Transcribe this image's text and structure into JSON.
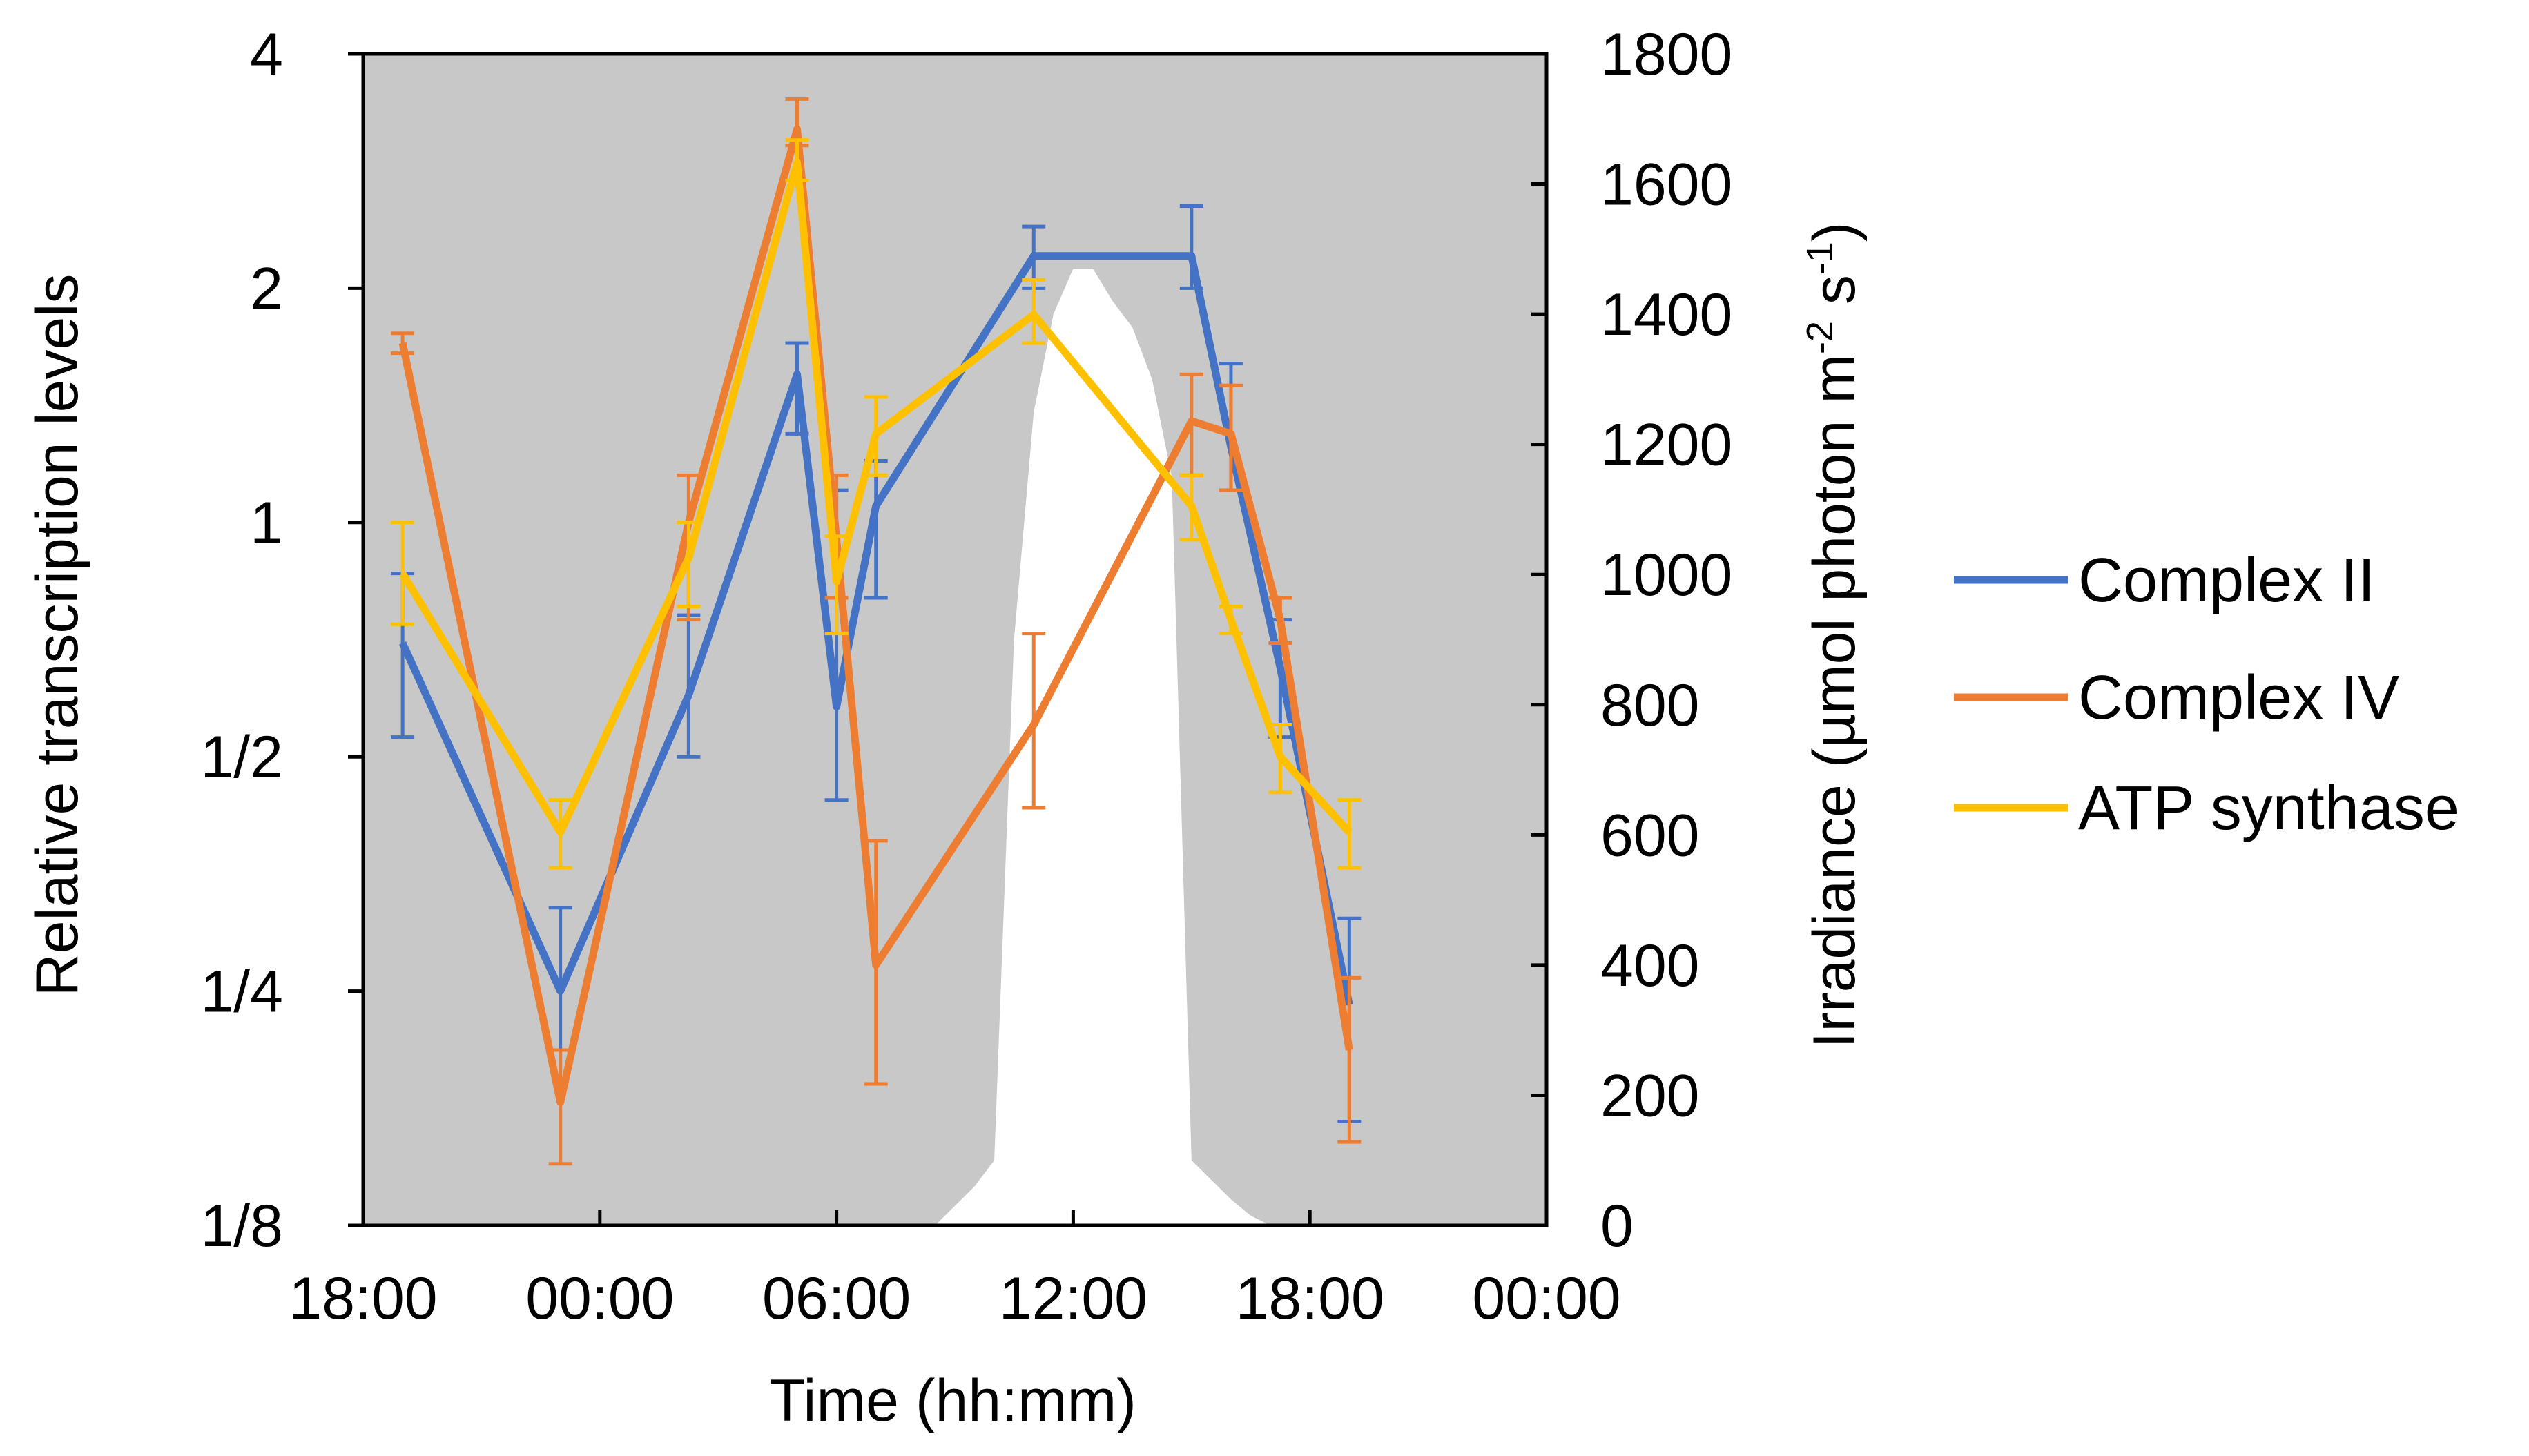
{
  "chart_data": {
    "type": "line",
    "xlabel": "Time (hh:mm)",
    "ylabel": "Relative transcription levels",
    "ylabel2": "Irradiance (µmol photon m⁻² s⁻¹)",
    "ylabel2_parts": [
      "Irradiance (µmol photon m",
      "-2",
      " s",
      "-1",
      ")"
    ],
    "x_range_hours": [
      -6,
      24
    ],
    "x_ticks": [
      {
        "hour": -6,
        "label": "18:00"
      },
      {
        "hour": 0,
        "label": "00:00"
      },
      {
        "hour": 6,
        "label": "06:00"
      },
      {
        "hour": 12,
        "label": "12:00"
      },
      {
        "hour": 18,
        "label": "18:00"
      },
      {
        "hour": 24,
        "label": "00:00"
      }
    ],
    "y_scale": "log2",
    "y_range": [
      0.125,
      4
    ],
    "y_ticks": [
      {
        "value": 4,
        "label": "4"
      },
      {
        "value": 2,
        "label": "2"
      },
      {
        "value": 1,
        "label": "1"
      },
      {
        "value": 0.5,
        "label": "1/2"
      },
      {
        "value": 0.25,
        "label": "1/4"
      },
      {
        "value": 0.125,
        "label": "1/8"
      }
    ],
    "y2_range": [
      0,
      1800
    ],
    "y2_ticks": [
      0,
      200,
      400,
      600,
      800,
      1000,
      1200,
      1400,
      1600,
      1800
    ],
    "y2_tick_labels": [
      "0",
      "200",
      "400",
      "600",
      "800",
      "1000",
      "1200",
      "1400",
      "1600",
      "1800"
    ],
    "grid": false,
    "legend_position": "right",
    "plot_background": "#c8c8c8",
    "irradiance": {
      "hours": [
        8.5,
        9.0,
        9.5,
        10.0,
        10.5,
        11.0,
        11.5,
        12.0,
        12.5,
        13.0,
        13.5,
        14.0,
        14.5,
        15.0,
        15.5,
        16.0,
        16.5,
        17.0
      ],
      "values": [
        0,
        30,
        60,
        100,
        900,
        1250,
        1400,
        1470,
        1470,
        1420,
        1380,
        1300,
        1150,
        100,
        70,
        40,
        15,
        0
      ],
      "color": "#ffffff"
    },
    "series": [
      {
        "name": "Complex II",
        "color": "#4472c4",
        "x": [
          -5.0,
          -1.0,
          2.25,
          5.0,
          6.0,
          7.0,
          11.0,
          15.0,
          16.0,
          17.25,
          19.0
        ],
        "y": [
          0.7,
          0.25,
          0.6,
          1.55,
          0.58,
          1.05,
          2.2,
          2.2,
          1.25,
          0.65,
          0.24
        ],
        "err_low": [
          0.53,
          0.21,
          0.5,
          1.3,
          0.44,
          0.8,
          2.0,
          2.0,
          1.1,
          0.53,
          0.17
        ],
        "err_high": [
          0.86,
          0.32,
          0.76,
          1.7,
          1.1,
          1.2,
          2.4,
          2.55,
          1.6,
          0.75,
          0.31
        ]
      },
      {
        "name": "Complex IV",
        "color": "#ed7d31",
        "x": [
          -5.0,
          -1.0,
          2.25,
          5.0,
          6.0,
          7.0,
          11.0,
          15.0,
          16.0,
          17.25,
          19.0
        ],
        "y": [
          1.7,
          0.18,
          1.0,
          3.2,
          0.95,
          0.27,
          0.55,
          1.35,
          1.3,
          0.75,
          0.21
        ],
        "err_low": [
          1.65,
          0.15,
          0.75,
          3.05,
          0.8,
          0.19,
          0.43,
          1.15,
          1.1,
          0.7,
          0.16
        ],
        "err_high": [
          1.75,
          0.21,
          1.15,
          3.5,
          1.15,
          0.39,
          0.72,
          1.55,
          1.5,
          0.8,
          0.26
        ]
      },
      {
        "name": "ATP synthase",
        "color": "#ffc000",
        "x": [
          -5.0,
          -1.0,
          2.25,
          5.0,
          6.0,
          7.0,
          11.0,
          15.0,
          16.0,
          17.25,
          19.0
        ],
        "y": [
          0.86,
          0.4,
          0.9,
          2.9,
          0.84,
          1.3,
          1.85,
          1.05,
          0.75,
          0.5,
          0.4
        ],
        "err_low": [
          0.74,
          0.36,
          0.78,
          2.75,
          0.72,
          1.15,
          1.7,
          0.95,
          0.72,
          0.45,
          0.36
        ],
        "err_high": [
          1.0,
          0.44,
          1.0,
          3.1,
          0.96,
          1.45,
          2.05,
          1.15,
          0.78,
          0.55,
          0.44
        ]
      }
    ]
  }
}
